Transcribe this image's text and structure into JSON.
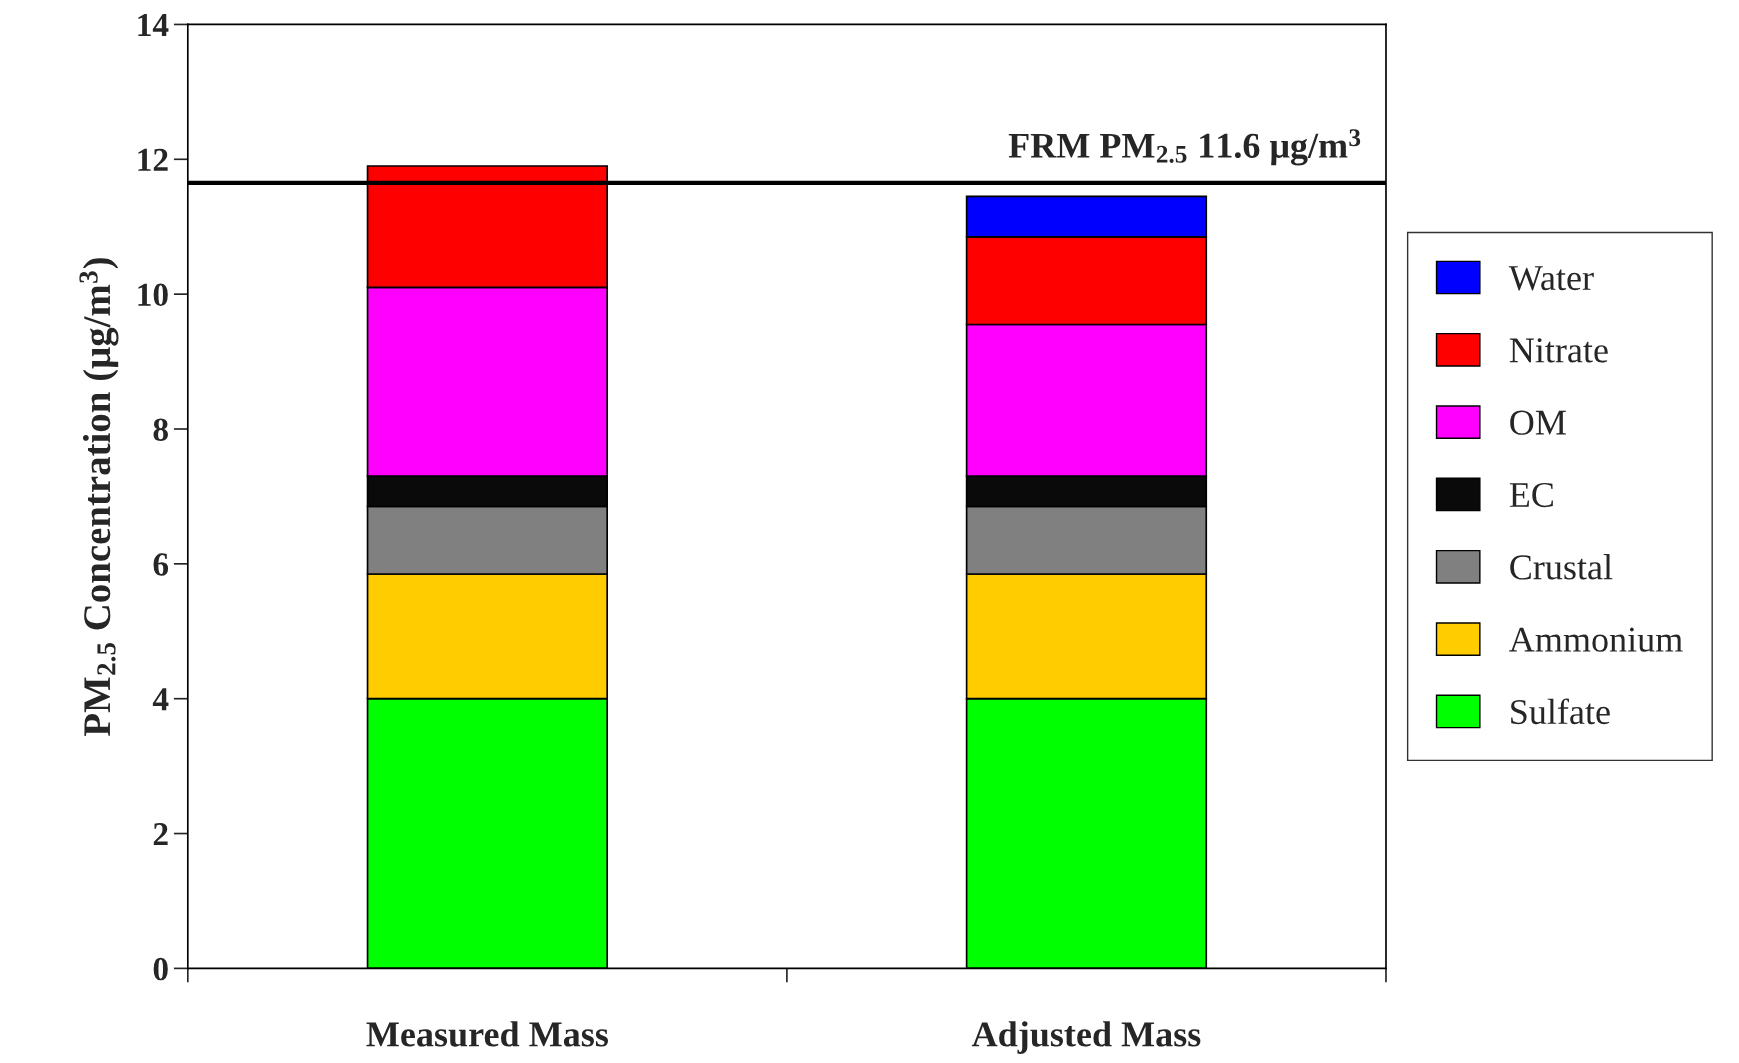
{
  "chart_data": {
    "type": "bar",
    "stacked": true,
    "ylabel": "PM$_{2.5}$ Concentration (μg/m$^{3}$)",
    "categories": [
      "Measured Mass",
      "Adjusted Mass"
    ],
    "series": [
      {
        "name": "Sulfate",
        "color": "#00ff00",
        "values": [
          4.0,
          4.0
        ]
      },
      {
        "name": "Ammonium",
        "color": "#ffcc00",
        "values": [
          1.85,
          1.85
        ]
      },
      {
        "name": "Crustal",
        "color": "#808080",
        "values": [
          1.0,
          1.0
        ]
      },
      {
        "name": "EC",
        "color": "#0a0a0a",
        "values": [
          0.45,
          0.45
        ]
      },
      {
        "name": "OM",
        "color": "#ff00ff",
        "values": [
          2.8,
          2.25
        ]
      },
      {
        "name": "Nitrate",
        "color": "#ff0000",
        "values": [
          1.8,
          1.3
        ]
      },
      {
        "name": "Water",
        "color": "#0000ff",
        "values": [
          null,
          0.6
        ]
      }
    ],
    "ylim": [
      0,
      14
    ],
    "yticks": [
      0,
      2,
      4,
      6,
      8,
      10,
      12,
      14
    ],
    "ref_lines": [
      {
        "axis": "y",
        "value": 11.65,
        "label": "FRM PM$_{2.5}$ 11.6 μg/m$^{3}$",
        "color": "#000000"
      }
    ],
    "legend": "right",
    "grid": false
  }
}
